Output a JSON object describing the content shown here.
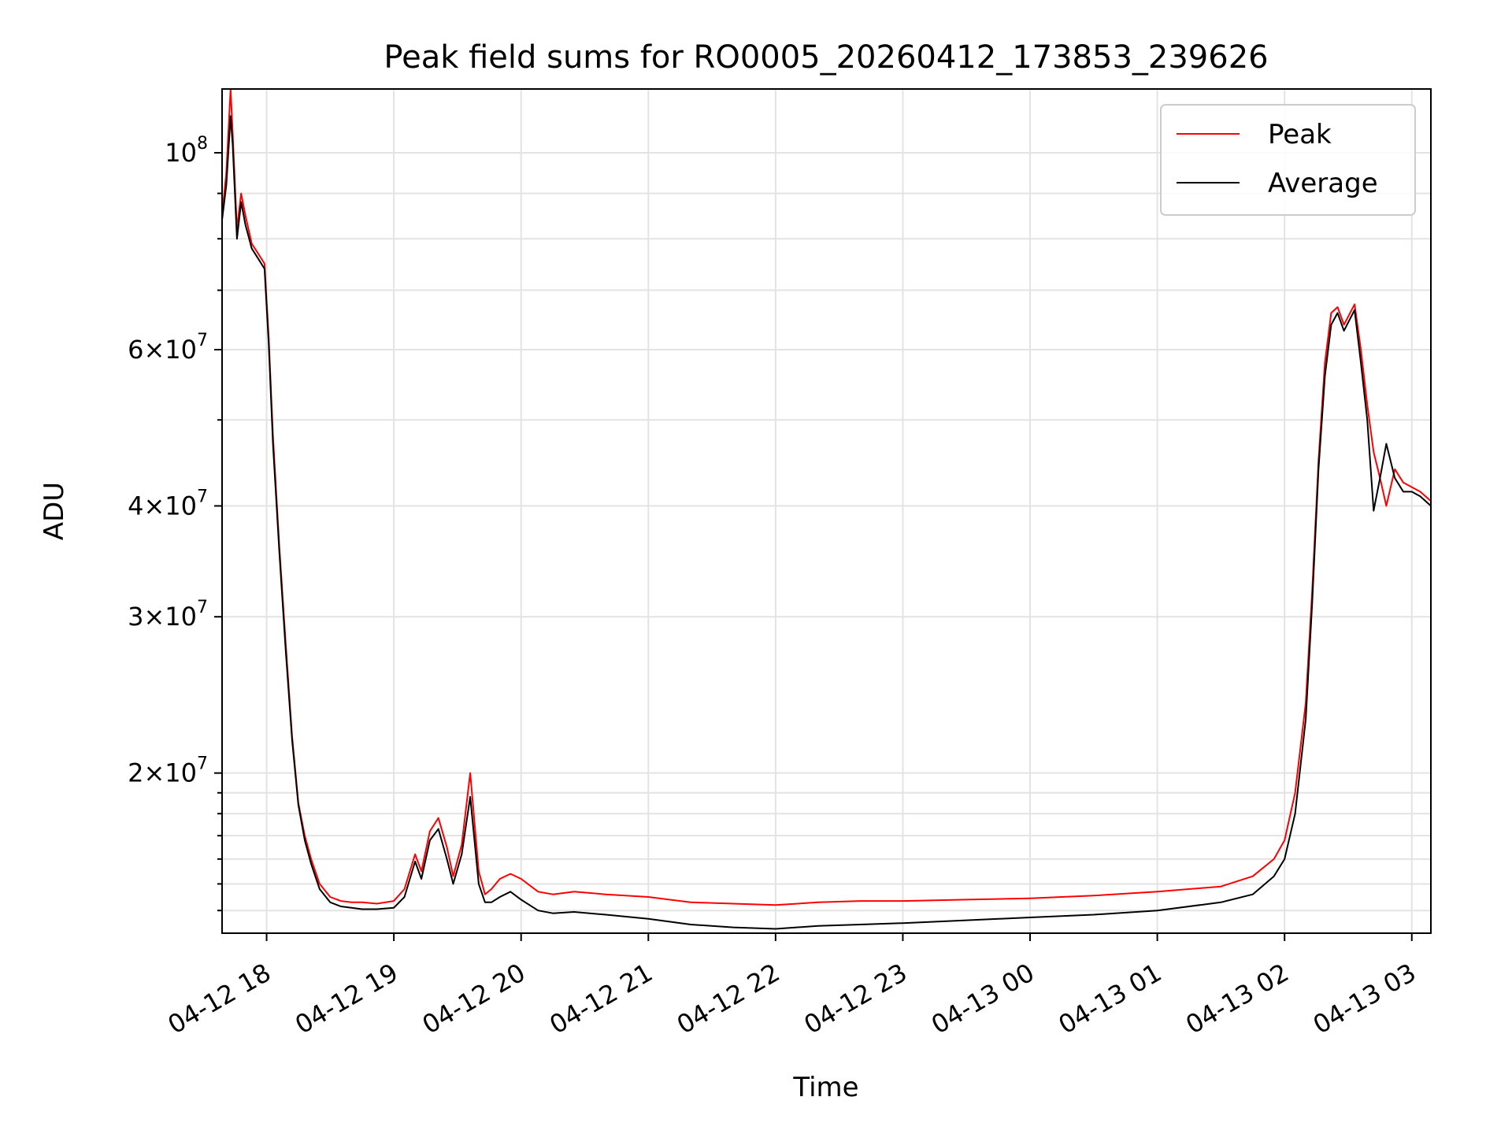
{
  "chart_data": {
    "type": "line",
    "title": "Peak field sums for RO0005_20260412_173853_239626",
    "xlabel": "Time",
    "ylabel": "ADU",
    "y_scale": "log",
    "ylim": [
      13200000,
      118000000
    ],
    "xlim": [
      "04-12 17:39",
      "04-13 03:09"
    ],
    "grid": true,
    "legend_position": "top-right",
    "x_ticks": [
      "04-12 18",
      "04-12 19",
      "04-12 20",
      "04-12 21",
      "04-12 22",
      "04-12 23",
      "04-13 00",
      "04-13 01",
      "04-13 02",
      "04-13 03"
    ],
    "y_ticks": [
      {
        "value": 20000000,
        "base": "2",
        "exp": "7"
      },
      {
        "value": 30000000,
        "base": "3",
        "exp": "7"
      },
      {
        "value": 40000000,
        "base": "4",
        "exp": "7"
      },
      {
        "value": 60000000,
        "base": "6",
        "exp": "7"
      },
      {
        "value": 100000000,
        "base": "",
        "exp": "8"
      }
    ],
    "series": [
      {
        "name": "Peak",
        "color": "#ff0000",
        "x": [
          "04-12 17:39",
          "04-12 17:41",
          "04-12 17:43",
          "04-12 17:44",
          "04-12 17:46",
          "04-12 17:48",
          "04-12 17:50",
          "04-12 17:53",
          "04-12 17:56",
          "04-12 17:59",
          "04-12 18:01",
          "04-12 18:03",
          "04-12 18:06",
          "04-12 18:09",
          "04-12 18:12",
          "04-12 18:15",
          "04-12 18:18",
          "04-12 18:21",
          "04-12 18:25",
          "04-12 18:30",
          "04-12 18:35",
          "04-12 18:40",
          "04-12 18:45",
          "04-12 18:52",
          "04-12 19:00",
          "04-12 19:05",
          "04-12 19:10",
          "04-12 19:13",
          "04-12 19:17",
          "04-12 19:21",
          "04-12 19:25",
          "04-12 19:28",
          "04-12 19:32",
          "04-12 19:36",
          "04-12 19:40",
          "04-12 19:43",
          "04-12 19:46",
          "04-12 19:50",
          "04-12 19:55",
          "04-12 20:00",
          "04-12 20:08",
          "04-12 20:15",
          "04-12 20:25",
          "04-12 20:40",
          "04-12 21:00",
          "04-12 21:20",
          "04-12 21:40",
          "04-12 22:00",
          "04-12 22:20",
          "04-12 22:40",
          "04-12 23:00",
          "04-12 23:30",
          "04-13 00:00",
          "04-13 00:30",
          "04-13 01:00",
          "04-13 01:30",
          "04-13 01:45",
          "04-13 01:55",
          "04-13 02:00",
          "04-13 02:05",
          "04-13 02:10",
          "04-13 02:13",
          "04-13 02:16",
          "04-13 02:19",
          "04-13 02:22",
          "04-13 02:25",
          "04-13 02:28",
          "04-13 02:33",
          "04-13 02:36",
          "04-13 02:39",
          "04-13 02:42",
          "04-13 02:45",
          "04-13 02:48",
          "04-13 02:52",
          "04-13 02:56",
          "04-13 03:00",
          "04-13 03:04",
          "04-13 03:09"
        ],
        "values": [
          85000000,
          95000000,
          118000000,
          105000000,
          82000000,
          90000000,
          85000000,
          79000000,
          77000000,
          75000000,
          62000000,
          48000000,
          36000000,
          28000000,
          22000000,
          18500000,
          17000000,
          16000000,
          15000000,
          14500000,
          14350000,
          14300000,
          14300000,
          14250000,
          14350000,
          14800000,
          16200000,
          15500000,
          17200000,
          17800000,
          16500000,
          15300000,
          16600000,
          20000000,
          15500000,
          14600000,
          14800000,
          15200000,
          15400000,
          15200000,
          14700000,
          14600000,
          14700000,
          14600000,
          14500000,
          14300000,
          14250000,
          14200000,
          14300000,
          14350000,
          14350000,
          14400000,
          14450000,
          14550000,
          14700000,
          14900000,
          15300000,
          16000000,
          16800000,
          19000000,
          24000000,
          32000000,
          45000000,
          58000000,
          66000000,
          67000000,
          64000000,
          67500000,
          60000000,
          52000000,
          46000000,
          43000000,
          40000000,
          44000000,
          42500000,
          42000000,
          41500000,
          40500000
        ]
      },
      {
        "name": "Average",
        "color": "#000000",
        "x": [
          "04-12 17:39",
          "04-12 17:41",
          "04-12 17:43",
          "04-12 17:44",
          "04-12 17:46",
          "04-12 17:48",
          "04-12 17:50",
          "04-12 17:53",
          "04-12 17:56",
          "04-12 17:59",
          "04-12 18:01",
          "04-12 18:03",
          "04-12 18:06",
          "04-12 18:09",
          "04-12 18:12",
          "04-12 18:15",
          "04-12 18:18",
          "04-12 18:21",
          "04-12 18:25",
          "04-12 18:30",
          "04-12 18:35",
          "04-12 18:40",
          "04-12 18:45",
          "04-12 18:52",
          "04-12 19:00",
          "04-12 19:05",
          "04-12 19:10",
          "04-12 19:13",
          "04-12 19:17",
          "04-12 19:21",
          "04-12 19:25",
          "04-12 19:28",
          "04-12 19:32",
          "04-12 19:36",
          "04-12 19:40",
          "04-12 19:43",
          "04-12 19:46",
          "04-12 19:50",
          "04-12 19:55",
          "04-12 20:00",
          "04-12 20:08",
          "04-12 20:15",
          "04-12 20:25",
          "04-12 20:40",
          "04-12 21:00",
          "04-12 21:20",
          "04-12 21:40",
          "04-12 22:00",
          "04-12 22:20",
          "04-12 22:40",
          "04-12 23:00",
          "04-12 23:30",
          "04-13 00:00",
          "04-13 00:30",
          "04-13 01:00",
          "04-13 01:30",
          "04-13 01:45",
          "04-13 01:55",
          "04-13 02:00",
          "04-13 02:05",
          "04-13 02:10",
          "04-13 02:13",
          "04-13 02:16",
          "04-13 02:19",
          "04-13 02:22",
          "04-13 02:25",
          "04-13 02:28",
          "04-13 02:33",
          "04-13 02:36",
          "04-13 02:39",
          "04-13 02:42",
          "04-13 02:45",
          "04-13 02:48",
          "04-13 02:52",
          "04-13 02:56",
          "04-13 03:00",
          "04-13 03:04",
          "04-13 03:09"
        ],
        "values": [
          84000000,
          92000000,
          110000000,
          102000000,
          80000000,
          88000000,
          83000000,
          78000000,
          76000000,
          74000000,
          61000000,
          47000000,
          35500000,
          27500000,
          21800000,
          18400000,
          16800000,
          15800000,
          14800000,
          14300000,
          14150000,
          14100000,
          14050000,
          14050000,
          14100000,
          14500000,
          15900000,
          15200000,
          16800000,
          17300000,
          16000000,
          15000000,
          16200000,
          18800000,
          15000000,
          14300000,
          14300000,
          14500000,
          14700000,
          14400000,
          14000000,
          13900000,
          13950000,
          13850000,
          13700000,
          13500000,
          13400000,
          13350000,
          13450000,
          13500000,
          13550000,
          13650000,
          13750000,
          13850000,
          14000000,
          14300000,
          14600000,
          15300000,
          16000000,
          18000000,
          23000000,
          31000000,
          44000000,
          56000000,
          64000000,
          66000000,
          63000000,
          66500000,
          58000000,
          50000000,
          39500000,
          43000000,
          47000000,
          43000000,
          41500000,
          41500000,
          41000000,
          40000000
        ]
      }
    ]
  }
}
